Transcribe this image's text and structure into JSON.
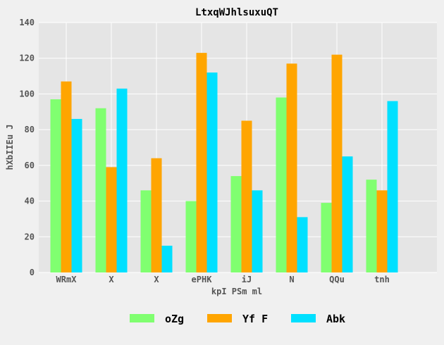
{
  "chart_data": {
    "type": "bar",
    "title": "LtxqWJhlsuxuQT",
    "xlabel": "kpI PSm ml",
    "ylabel": "hXbIIEu J",
    "categories": [
      "WRmX",
      "X",
      "X",
      "ePHK",
      "iJ",
      "N",
      "QQu",
      "tnh"
    ],
    "ylim": [
      0,
      140
    ],
    "yticks": [
      0,
      20,
      40,
      60,
      80,
      100,
      120,
      140
    ],
    "grid": true,
    "legend_position": "bottom-center",
    "series": [
      {
        "name": "oZg",
        "color": "#80ff70",
        "values": [
          97,
          92,
          46,
          40,
          54,
          98,
          39,
          52
        ]
      },
      {
        "name": "Yf F",
        "color": "#ffa500",
        "values": [
          107,
          59,
          64,
          123,
          85,
          117,
          122,
          46
        ]
      },
      {
        "name": "Abk",
        "color": "#00e0ff",
        "values": [
          86,
          103,
          15,
          112,
          46,
          31,
          65,
          96
        ]
      }
    ]
  }
}
